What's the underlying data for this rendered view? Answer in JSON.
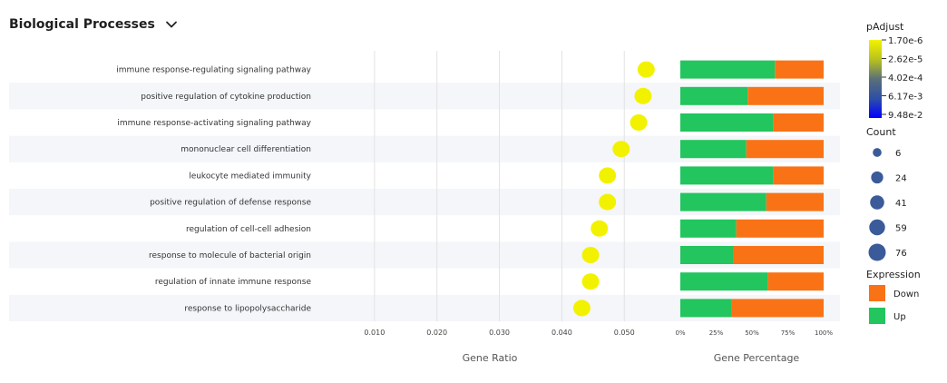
{
  "header": {
    "title": "Biological Processes",
    "dropdown_icon": "chevron-down-icon"
  },
  "chart_data": {
    "type": "scatter",
    "categories": [
      "immune response-regulating signaling pathway",
      "positive regulation of cytokine production",
      "immune response-activating signaling pathway",
      "mononuclear cell differentiation",
      "leukocyte mediated immunity",
      "positive regulation of defense response",
      "regulation of cell-cell adhesion",
      "response to molecule of bacterial origin",
      "regulation of innate immune response",
      "response to lipopolysaccharide"
    ],
    "gene_ratio": [
      0.0535,
      0.053,
      0.0523,
      0.0495,
      0.0473,
      0.0473,
      0.046,
      0.0446,
      0.0446,
      0.0432
    ],
    "padjust_color_value": [
      1.7e-06,
      1.7e-06,
      1.7e-06,
      1.7e-06,
      1.7e-06,
      1.7e-06,
      1.7e-06,
      1.7e-06,
      1.7e-06,
      1.7e-06
    ],
    "up_percentage": [
      66,
      47,
      65,
      46,
      65,
      60,
      39,
      37,
      61,
      36
    ],
    "xlabel": "Gene Ratio",
    "x_ticks": [
      "0.010",
      "0.020",
      "0.030",
      "0.040",
      "0.050"
    ],
    "x_tick_values": [
      0.01,
      0.02,
      0.03,
      0.04,
      0.05
    ],
    "xlim": [
      0.0,
      0.0565
    ],
    "pct_xlabel": "Gene Percentage",
    "pct_ticks": [
      "0%",
      "25%",
      "50%",
      "75%",
      "100%"
    ],
    "pct_tick_values": [
      0,
      25,
      50,
      75,
      100
    ],
    "grid": true,
    "legend_placement": "right",
    "padjust_legend": {
      "title": "pAdjust",
      "labels": [
        "1.70e-6",
        "2.62e-5",
        "4.02e-4",
        "6.17e-3",
        "9.48e-2"
      ]
    },
    "count_legend": {
      "title": "Count",
      "labels": [
        "6",
        "24",
        "41",
        "59",
        "76"
      ],
      "values": [
        6,
        24,
        41,
        59,
        76
      ]
    },
    "expression_legend": {
      "title": "Expression",
      "items": [
        {
          "label": "Down",
          "color": "#f97316"
        },
        {
          "label": "Up",
          "color": "#22c55e"
        }
      ]
    },
    "colors": {
      "point": "#f2f200",
      "up": "#22c55e",
      "down": "#f97316",
      "gradient": [
        "#f2f200",
        "#b8c21e",
        "#5a7078",
        "#2e4fa8",
        "#0000ff"
      ],
      "count_dot": "#3b5a9a"
    }
  }
}
